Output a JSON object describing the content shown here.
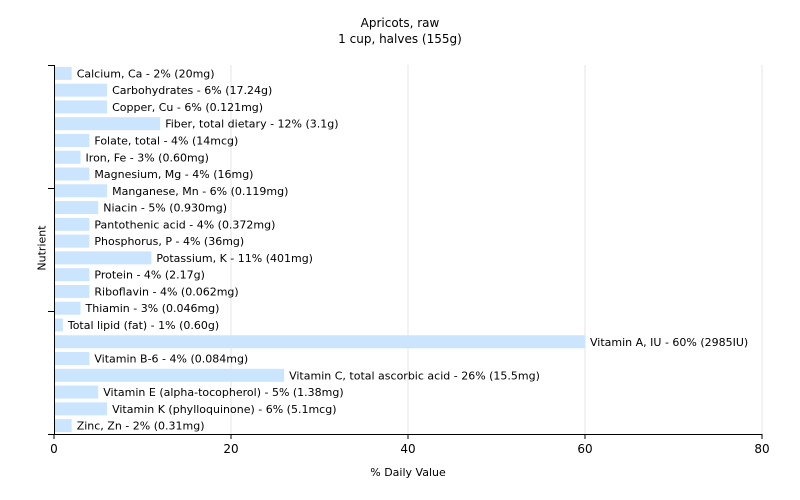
{
  "chart_data": {
    "type": "bar",
    "orientation": "horizontal",
    "title": "Apricots, raw",
    "subtitle": "1 cup, halves (155g)",
    "xlabel": "% Daily Value",
    "ylabel": "Nutrient",
    "xlim": [
      0,
      80
    ],
    "xticks": [
      0,
      20,
      40,
      60,
      80
    ],
    "grid": true,
    "bar_color": "#cce5ff",
    "grid_color": "#e6e6e6",
    "categories": [
      "Calcium, Ca",
      "Carbohydrates",
      "Copper, Cu",
      "Fiber, total dietary",
      "Folate, total",
      "Iron, Fe",
      "Magnesium, Mg",
      "Manganese, Mn",
      "Niacin",
      "Pantothenic acid",
      "Phosphorus, P",
      "Potassium, K",
      "Protein",
      "Riboflavin",
      "Thiamin",
      "Total lipid (fat)",
      "Vitamin A, IU",
      "Vitamin B-6",
      "Vitamin C, total ascorbic acid",
      "Vitamin E (alpha-tocopherol)",
      "Vitamin K (phylloquinone)",
      "Zinc, Zn"
    ],
    "values": [
      2,
      6,
      6,
      12,
      4,
      3,
      4,
      6,
      5,
      4,
      4,
      11,
      4,
      4,
      3,
      1,
      60,
      4,
      26,
      5,
      6,
      2
    ],
    "labels": [
      "Calcium, Ca - 2% (20mg)",
      "Carbohydrates - 6% (17.24g)",
      "Copper, Cu - 6% (0.121mg)",
      "Fiber, total dietary - 12% (3.1g)",
      "Folate, total - 4% (14mcg)",
      "Iron, Fe - 3% (0.60mg)",
      "Magnesium, Mg - 4% (16mg)",
      "Manganese, Mn - 6% (0.119mg)",
      "Niacin - 5% (0.930mg)",
      "Pantothenic acid - 4% (0.372mg)",
      "Phosphorus, P - 4% (36mg)",
      "Potassium, K - 11% (401mg)",
      "Protein - 4% (2.17g)",
      "Riboflavin - 4% (0.062mg)",
      "Thiamin - 3% (0.046mg)",
      "Total lipid (fat) - 1% (0.60g)",
      "Vitamin A, IU - 60% (2985IU)",
      "Vitamin B-6 - 4% (0.084mg)",
      "Vitamin C, total ascorbic acid - 26% (15.5mg)",
      "Vitamin E (alpha-tocopherol) - 5% (1.38mg)",
      "Vitamin K (phylloquinone) - 6% (5.1mcg)",
      "Zinc, Zn - 2% (0.31mg)"
    ]
  }
}
